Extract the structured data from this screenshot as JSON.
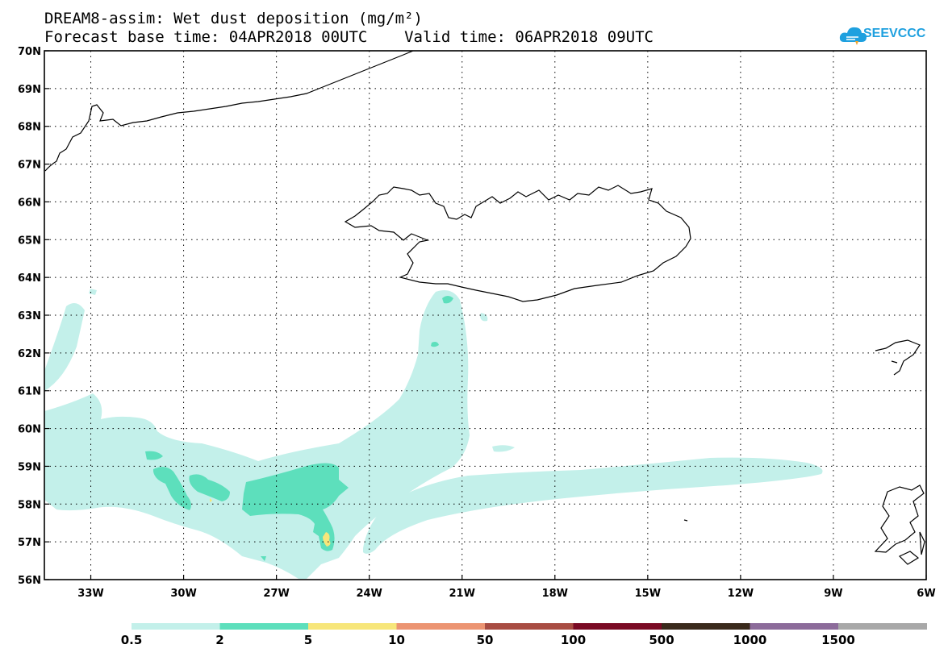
{
  "header": {
    "title_line1": "DREAM8-assim: Wet dust deposition (mg/m²)",
    "title_line2": "Forecast base time: 04APR2018 00UTC    Valid time: 06APR2018 09UTC"
  },
  "logo": {
    "text": "SEEVCCC",
    "icon": "cloud-icon",
    "color": "#1ea0df"
  },
  "map": {
    "lon_range": [
      -34.5,
      -6
    ],
    "lat_range": [
      56,
      70
    ],
    "lon_labels": [
      "33W",
      "30W",
      "27W",
      "24W",
      "21W",
      "18W",
      "15W",
      "12W",
      "9W",
      "6W"
    ],
    "lat_labels": [
      "56N",
      "57N",
      "58N",
      "59N",
      "60N",
      "61N",
      "62N",
      "63N",
      "64N",
      "65N",
      "66N",
      "67N",
      "68N",
      "69N",
      "70N"
    ],
    "grid": "dotted"
  },
  "colorbar": {
    "labels": [
      "0.5",
      "2",
      "5",
      "10",
      "50",
      "100",
      "500",
      "1000",
      "1500"
    ],
    "colors": [
      "#c3f0ea",
      "#5ddfbc",
      "#f7e67a",
      "#ec9472",
      "#a84c42",
      "#7a0a24",
      "#3a2a1c",
      "#8c6b9a",
      "#a8a8a8"
    ]
  }
}
